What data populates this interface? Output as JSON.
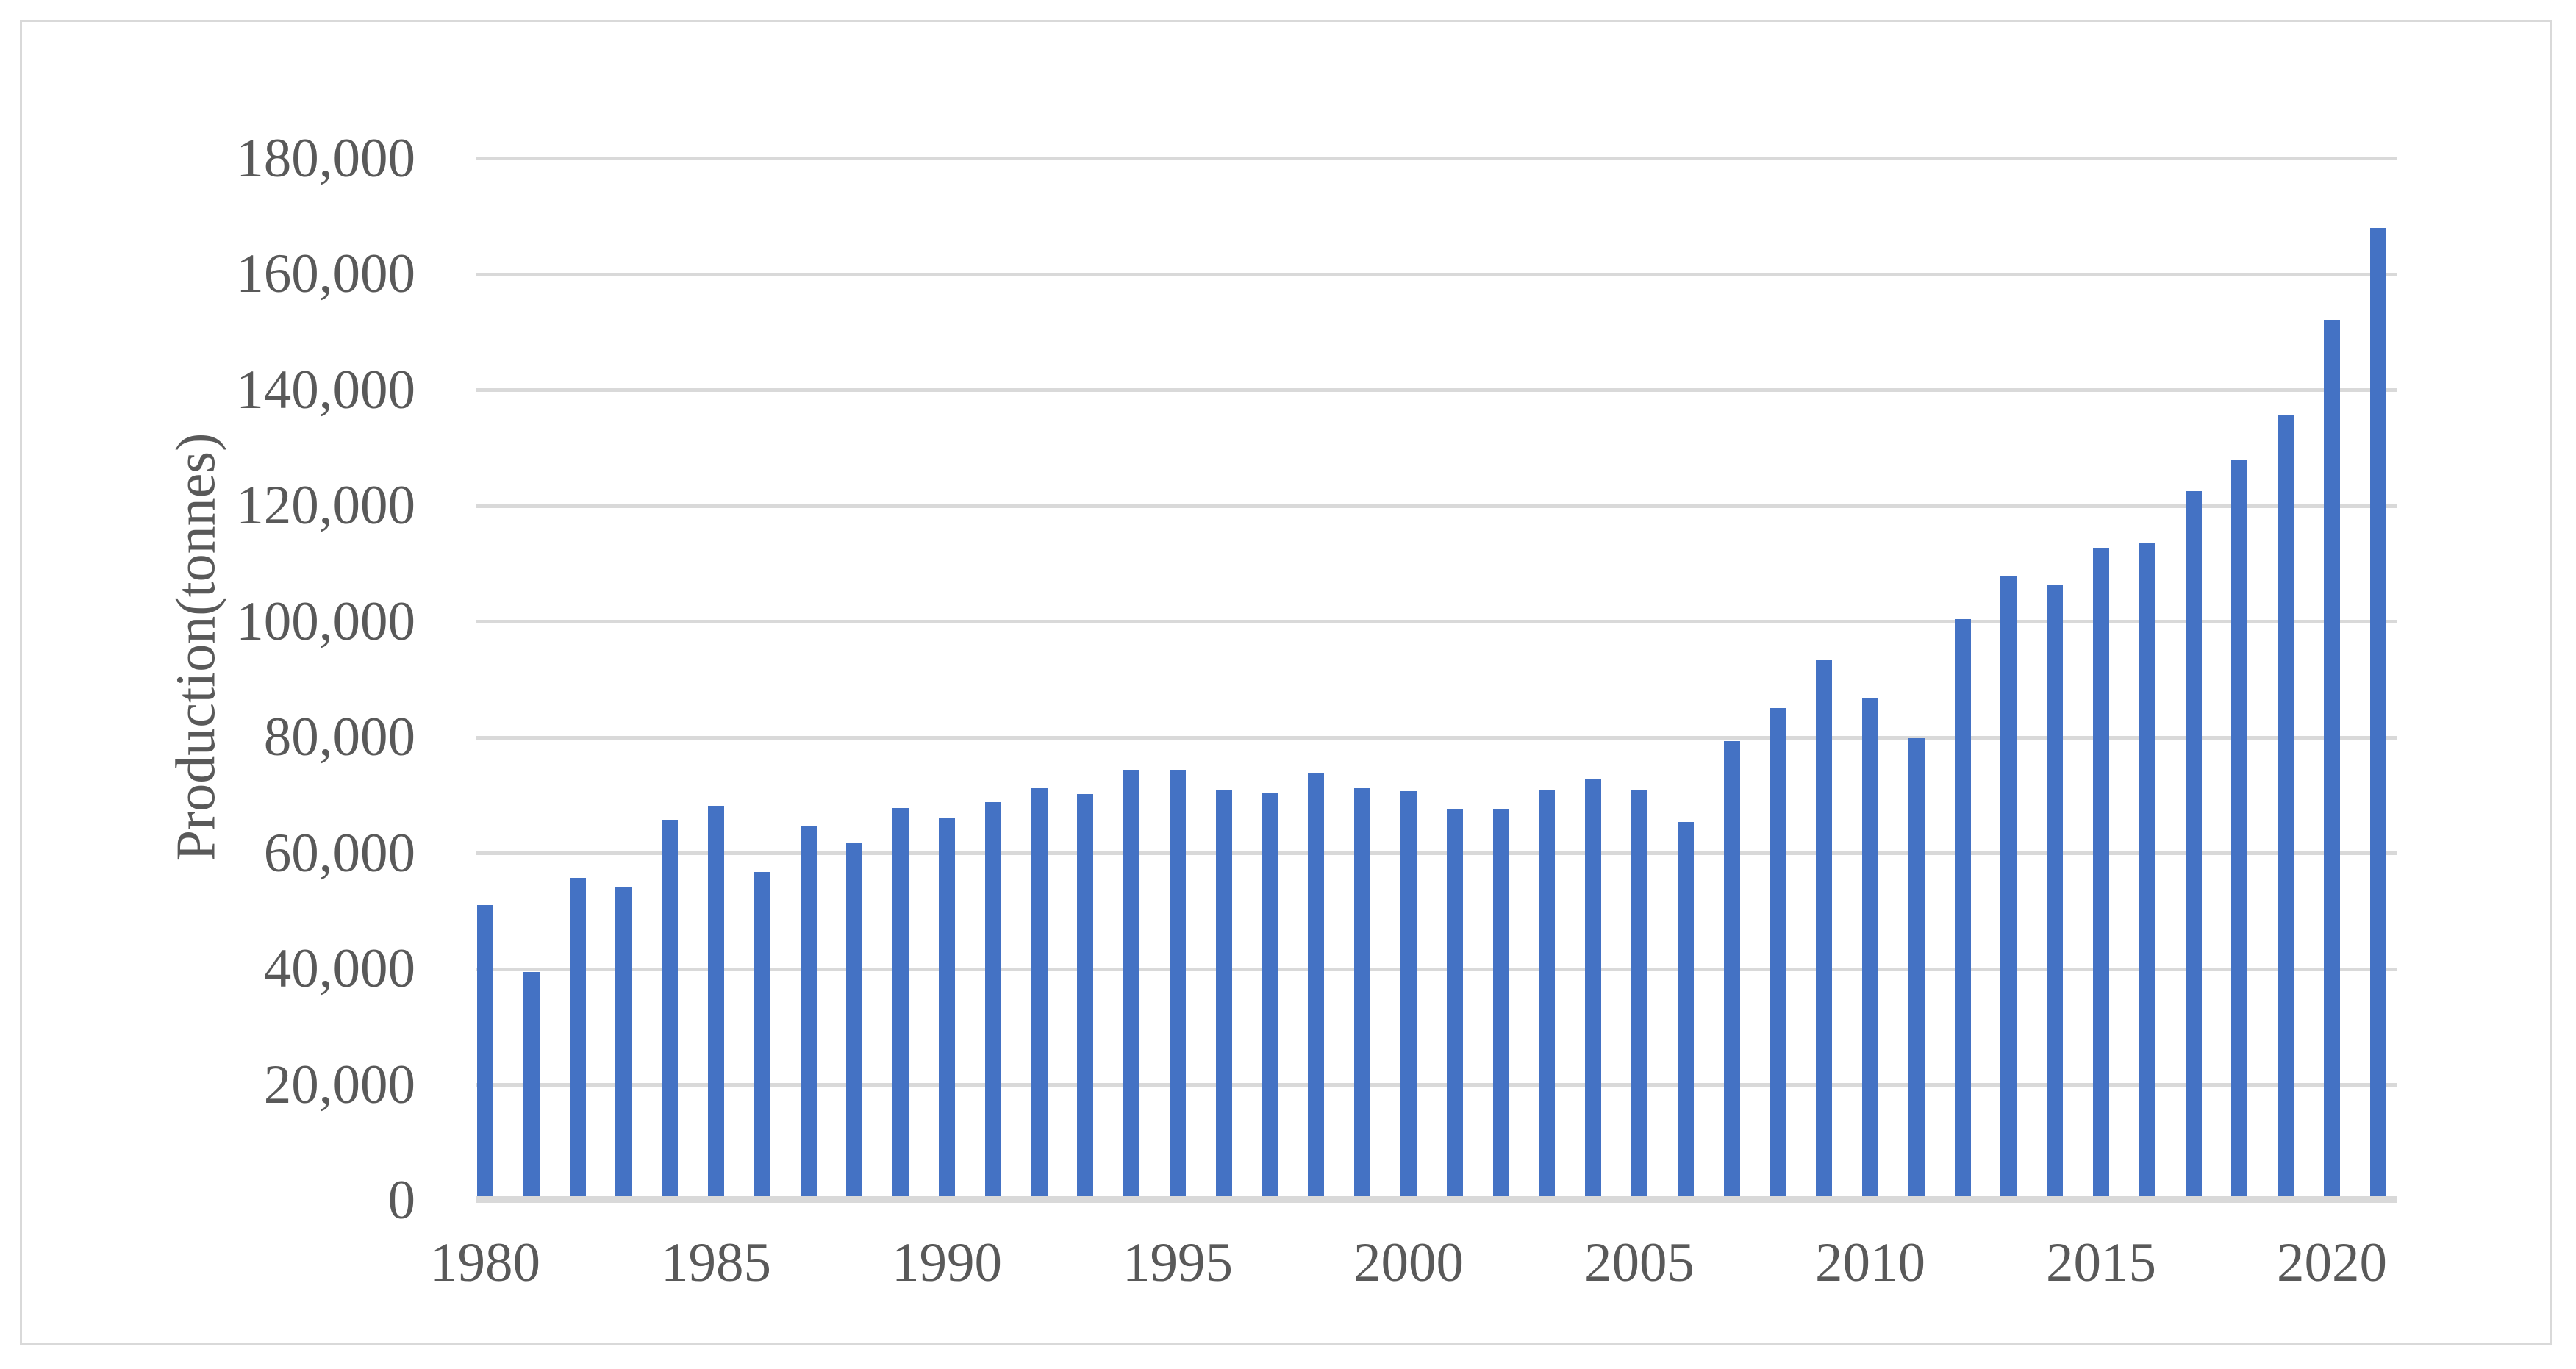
{
  "figure": {
    "background": "#ffffff",
    "frame_border_color": "#d9d9d9"
  },
  "chart_data": {
    "type": "bar",
    "title": "",
    "xlabel": "",
    "ylabel": "Production(tonnes)",
    "ylim": [
      0,
      180000
    ],
    "ytick_step": 20000,
    "ytick_labels": [
      "0",
      "20,000",
      "40,000",
      "60,000",
      "80,000",
      "100,000",
      "120,000",
      "140,000",
      "160,000",
      "180,000"
    ],
    "xtick_labels": [
      "1980",
      "1985",
      "1990",
      "1995",
      "2000",
      "2005",
      "2010",
      "2015",
      "2020"
    ],
    "xtick_years": [
      1980,
      1985,
      1990,
      1995,
      2000,
      2005,
      2010,
      2015,
      2020
    ],
    "grid": true,
    "legend": false,
    "bar_color": "#4472c4",
    "gridline_color": "#d9d9d9",
    "axis_line_color": "#d9d9d9",
    "text_color": "#595959",
    "categories": [
      1980,
      1981,
      1982,
      1983,
      1984,
      1985,
      1986,
      1987,
      1988,
      1989,
      1990,
      1991,
      1992,
      1993,
      1994,
      1995,
      1996,
      1997,
      1998,
      1999,
      2000,
      2001,
      2002,
      2003,
      2004,
      2005,
      2006,
      2007,
      2008,
      2009,
      2010,
      2011,
      2012,
      2013,
      2014,
      2015,
      2016,
      2017,
      2018,
      2019,
      2020,
      2021
    ],
    "values": [
      51000,
      39500,
      55800,
      54200,
      65800,
      68200,
      56800,
      64800,
      61800,
      67800,
      66200,
      68800,
      71200,
      70200,
      74400,
      74400,
      71000,
      70400,
      73900,
      71200,
      70700,
      67500,
      67500,
      70800,
      72700,
      70800,
      65400,
      79400,
      85100,
      93300,
      86700,
      79900,
      100500,
      107900,
      106300,
      112700,
      113500,
      122500,
      128000,
      135700,
      152100,
      168000
    ]
  }
}
